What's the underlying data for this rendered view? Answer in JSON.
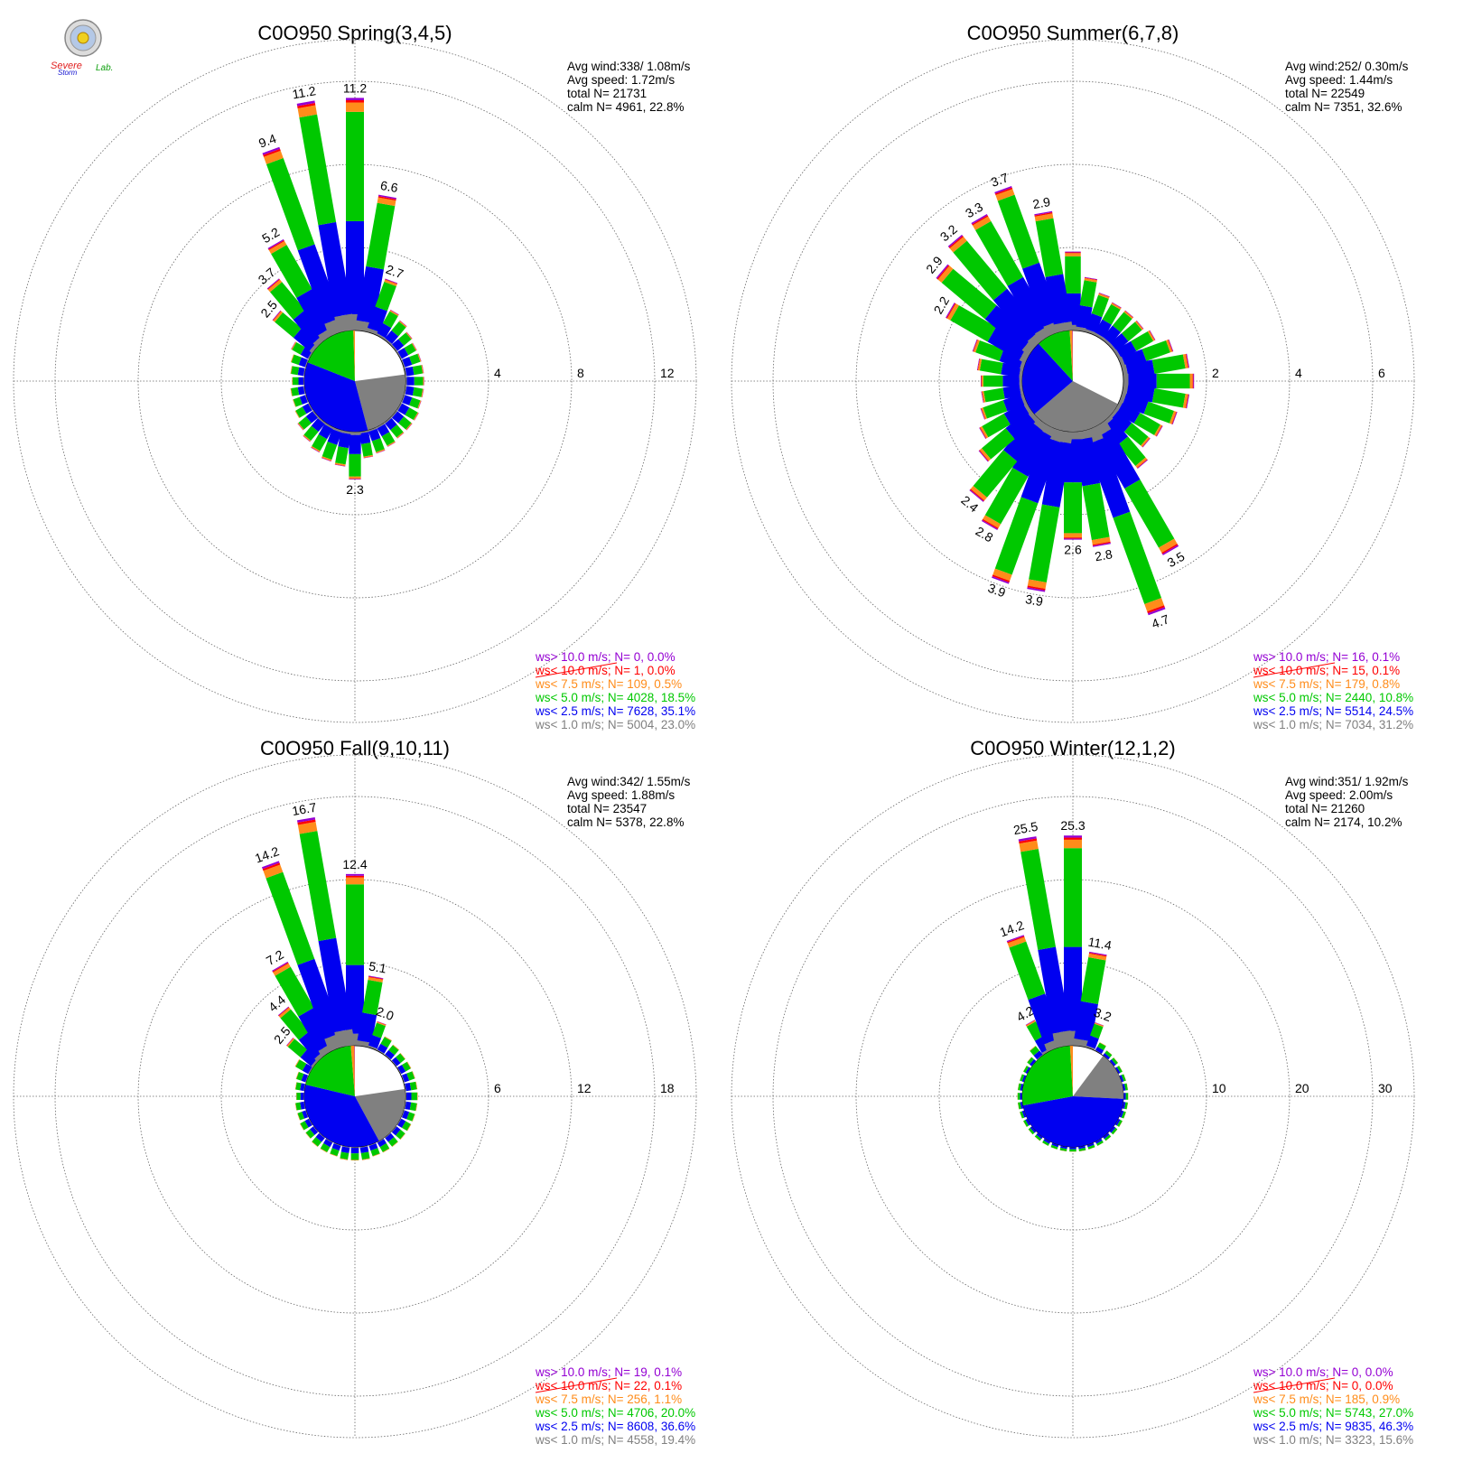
{
  "logo": {
    "text_severe": "Severe",
    "text_storm": "Storm",
    "text_lab": "Lab."
  },
  "chart_data": [
    {
      "type": "polar-bar",
      "title": "C0O950 Spring(3,4,5)",
      "stats": [
        "Avg wind:338/ 1.08m/s",
        "Avg speed: 1.72m/s",
        "total N=      21731",
        "calm N=   4961,  22.8%"
      ],
      "rings": [
        4,
        8,
        12
      ],
      "ring_labels": [
        "4",
        "8",
        "12"
      ],
      "rmax": 14,
      "legend": [
        {
          "label": "ws> 10.0 m/s; N=      0,  0.0%",
          "color": "#9400d3"
        },
        {
          "label": "ws< 10.0 m/s; N=      1,  0.0%",
          "color": "#ff0000"
        },
        {
          "label": "ws<  7.5 m/s; N=   109,  0.5%",
          "color": "#ff8c1a"
        },
        {
          "label": "ws<  5.0 m/s; N=  4028, 18.5%",
          "color": "#00c800"
        },
        {
          "label": "ws<  2.5 m/s; N=  7628, 35.1%",
          "color": "#0000f0"
        },
        {
          "label": "ws<  1.0 m/s; N=  5004, 23.0%",
          "color": "#808080"
        }
      ],
      "calm_pie": [
        23.0,
        35.1,
        18.5,
        0.5,
        0.0,
        0.0
      ],
      "directions_deg": [
        0,
        10,
        20,
        30,
        40,
        50,
        60,
        70,
        80,
        90,
        100,
        110,
        120,
        130,
        140,
        150,
        160,
        170,
        180,
        190,
        200,
        210,
        220,
        230,
        240,
        250,
        260,
        270,
        280,
        290,
        300,
        310,
        320,
        330,
        340,
        350
      ],
      "totals": [
        11.2,
        6.6,
        2.7,
        1.4,
        1.2,
        1.0,
        0.9,
        0.9,
        0.9,
        0.9,
        0.9,
        0.9,
        1.0,
        1.0,
        1.0,
        1.1,
        1.2,
        1.3,
        2.3,
        1.7,
        1.6,
        1.4,
        1.2,
        1.0,
        0.8,
        0.7,
        0.7,
        0.6,
        0.7,
        0.8,
        1.0,
        2.5,
        3.7,
        5.2,
        9.4,
        11.2
      ],
      "bar_labels": {
        "0": "11.2",
        "10": "6.6",
        "20": "2.7",
        "180": "2.3",
        "310": "2.5",
        "320": "3.7",
        "330": "5.2",
        "340": "9.4",
        "350": "11.2"
      }
    },
    {
      "type": "polar-bar",
      "title": "C0O950 Summer(6,7,8)",
      "stats": [
        "Avg wind:252/ 0.30m/s",
        "Avg speed: 1.44m/s",
        "total N=      22549",
        "calm N=   7351,  32.6%"
      ],
      "rings": [
        2,
        4,
        6
      ],
      "ring_labels": [
        "2",
        "4",
        "6"
      ],
      "rmax": 7,
      "legend": [
        {
          "label": "ws> 10.0 m/s; N=    16,  0.1%",
          "color": "#9400d3"
        },
        {
          "label": "ws< 10.0 m/s; N=    15,  0.1%",
          "color": "#ff0000"
        },
        {
          "label": "ws<  7.5 m/s; N=   179,  0.8%",
          "color": "#ff8c1a"
        },
        {
          "label": "ws<  5.0 m/s; N=  2440, 10.8%",
          "color": "#00c800"
        },
        {
          "label": "ws<  2.5 m/s; N=  5514, 24.5%",
          "color": "#0000f0"
        },
        {
          "label": "ws<  1.0 m/s; N=  7034, 31.2%",
          "color": "#808080"
        }
      ],
      "calm_pie": [
        31.2,
        24.5,
        10.8,
        0.8,
        0.1,
        0.1
      ],
      "directions_deg": [
        0,
        10,
        20,
        30,
        40,
        50,
        60,
        70,
        80,
        90,
        100,
        110,
        120,
        130,
        140,
        150,
        160,
        170,
        180,
        190,
        200,
        210,
        220,
        230,
        240,
        250,
        260,
        270,
        280,
        290,
        300,
        310,
        320,
        330,
        340,
        350
      ],
      "totals": [
        1.9,
        1.3,
        1.0,
        0.9,
        0.9,
        0.9,
        1.0,
        1.3,
        1.6,
        1.7,
        1.6,
        1.4,
        1.2,
        1.1,
        1.4,
        3.5,
        4.7,
        2.8,
        2.6,
        3.9,
        3.9,
        2.8,
        2.4,
        1.6,
        1.3,
        1.1,
        1.0,
        1.0,
        1.1,
        1.3,
        2.2,
        2.9,
        3.2,
        3.3,
        3.7,
        2.9
      ],
      "bar_labels": {
        "150": "3.5",
        "160": "4.7",
        "170": "2.8",
        "180": "2.6",
        "190": "3.9",
        "200": "3.9",
        "210": "2.8",
        "220": "2.4",
        "300": "2.2",
        "310": "2.9",
        "320": "3.2",
        "330": "3.3",
        "340": "3.7",
        "350": "2.9"
      }
    },
    {
      "type": "polar-bar",
      "title": "C0O950 Fall(9,10,11)",
      "stats": [
        "Avg wind:342/ 1.55m/s",
        "Avg speed: 1.88m/s",
        "total N=      23547",
        "calm N=   5378,  22.8%"
      ],
      "rings": [
        6,
        12,
        18
      ],
      "ring_labels": [
        "6",
        "12",
        "18"
      ],
      "rmax": 21,
      "legend": [
        {
          "label": "ws> 10.0 m/s; N=    19,  0.1%",
          "color": "#9400d3"
        },
        {
          "label": "ws< 10.0 m/s; N=    22,  0.1%",
          "color": "#ff0000"
        },
        {
          "label": "ws<  7.5 m/s; N=   256,  1.1%",
          "color": "#ff8c1a"
        },
        {
          "label": "ws<  5.0 m/s; N=  4706, 20.0%",
          "color": "#00c800"
        },
        {
          "label": "ws<  2.5 m/s; N=  8608, 36.6%",
          "color": "#0000f0"
        },
        {
          "label": "ws<  1.0 m/s; N=  4558, 19.4%",
          "color": "#808080"
        }
      ],
      "calm_pie": [
        19.4,
        36.6,
        20.0,
        1.1,
        0.1,
        0.1
      ],
      "directions_deg": [
        0,
        10,
        20,
        30,
        40,
        50,
        60,
        70,
        80,
        90,
        100,
        110,
        120,
        130,
        140,
        150,
        160,
        170,
        180,
        190,
        200,
        210,
        220,
        230,
        240,
        250,
        260,
        270,
        280,
        290,
        300,
        310,
        320,
        330,
        340,
        350
      ],
      "totals": [
        12.4,
        5.1,
        2.0,
        1.2,
        1.0,
        0.9,
        0.9,
        0.9,
        0.9,
        0.9,
        0.9,
        0.9,
        0.9,
        0.9,
        0.9,
        0.9,
        0.9,
        1.0,
        1.0,
        1.0,
        0.9,
        0.9,
        0.9,
        0.8,
        0.8,
        0.7,
        0.7,
        0.6,
        0.7,
        0.8,
        1.2,
        2.5,
        4.4,
        7.2,
        14.2,
        16.7
      ],
      "bar_labels": {
        "0": "12.4",
        "10": "5.1",
        "20": "2.0",
        "310": "2.5",
        "320": "4.4",
        "330": "7.2",
        "340": "14.2",
        "350": "16.7"
      }
    },
    {
      "type": "polar-bar",
      "title": "C0O950 Winter(12,1,2)",
      "stats": [
        "Avg wind:351/ 1.92m/s",
        "Avg speed: 2.00m/s",
        "total N=      21260",
        "calm N=   2174,  10.2%"
      ],
      "rings": [
        10,
        20,
        30
      ],
      "ring_labels": [
        "10",
        "20",
        "30"
      ],
      "rmax": 35,
      "legend": [
        {
          "label": "ws> 10.0 m/s; N=      0,  0.0%",
          "color": "#9400d3"
        },
        {
          "label": "ws< 10.0 m/s; N=      0,  0.0%",
          "color": "#ff0000"
        },
        {
          "label": "ws<  7.5 m/s; N=   185,  0.9%",
          "color": "#ff8c1a"
        },
        {
          "label": "ws<  5.0 m/s; N=  5743, 27.0%",
          "color": "#00c800"
        },
        {
          "label": "ws<  2.5 m/s; N=  9835, 46.3%",
          "color": "#0000f0"
        },
        {
          "label": "ws<  1.0 m/s; N=  3323, 15.6%",
          "color": "#808080"
        }
      ],
      "calm_pie": [
        15.6,
        46.3,
        27.0,
        0.9,
        0.0,
        0.0
      ],
      "directions_deg": [
        0,
        10,
        20,
        30,
        40,
        50,
        60,
        70,
        80,
        90,
        100,
        110,
        120,
        130,
        140,
        150,
        160,
        170,
        180,
        190,
        200,
        210,
        220,
        230,
        240,
        250,
        260,
        270,
        280,
        290,
        300,
        310,
        320,
        330,
        340,
        350
      ],
      "totals": [
        25.3,
        11.4,
        3.2,
        1.2,
        0.8,
        0.7,
        0.6,
        0.6,
        0.6,
        0.6,
        0.6,
        0.6,
        0.6,
        0.6,
        0.6,
        0.6,
        0.6,
        0.6,
        0.6,
        0.6,
        0.6,
        0.6,
        0.6,
        0.6,
        0.6,
        0.6,
        0.6,
        0.6,
        0.6,
        0.6,
        0.6,
        0.8,
        1.5,
        4.2,
        14.2,
        25.5
      ],
      "bar_labels": {
        "0": "25.3",
        "10": "11.4",
        "20": "3.2",
        "330": "4.2",
        "340": "14.2",
        "350": "25.5"
      }
    }
  ]
}
